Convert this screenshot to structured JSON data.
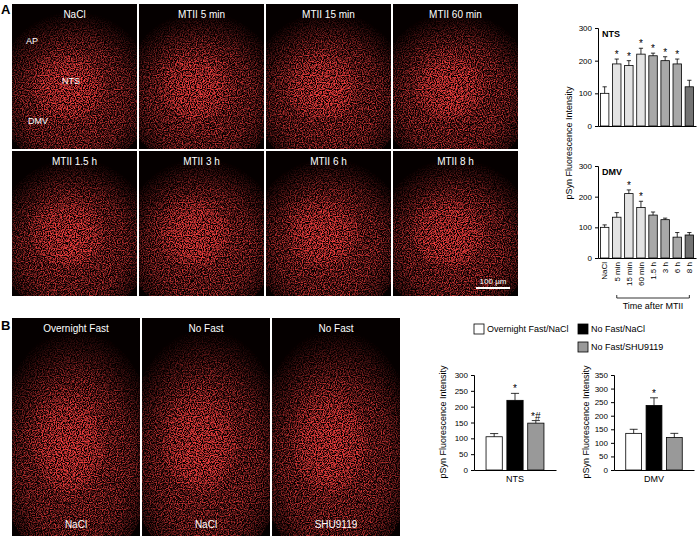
{
  "chart_data": [
    {
      "type": "bar",
      "title": "NTS",
      "categories": [
        null,
        null,
        null,
        null,
        null,
        null,
        null,
        null
      ],
      "values": [
        100,
        190,
        185,
        220,
        215,
        200,
        190,
        120
      ],
      "errors": [
        20,
        15,
        15,
        18,
        8,
        12,
        15,
        20
      ],
      "annotations": [
        null,
        "*",
        "*",
        "*",
        "*",
        "*",
        "*",
        null
      ],
      "colors": [
        "#ffffff",
        "#e3e3e3",
        "#e3e3e3",
        "#e3e3e3",
        "#a8a8a8",
        "#a8a8a8",
        "#a8a8a8",
        "#737373"
      ],
      "ylabel": "pSyn Fluorescence Intensity",
      "ylim": [
        0,
        300
      ],
      "yticks": [
        0,
        100,
        200,
        300
      ]
    },
    {
      "type": "bar",
      "title": "DMV",
      "categories": [
        "NaCl",
        "5 min",
        "15 min",
        "60 min",
        "1.5 h",
        "3 h",
        "6 h",
        "8 h"
      ],
      "values": [
        100,
        133,
        210,
        165,
        140,
        125,
        68,
        75
      ],
      "errors": [
        8,
        15,
        12,
        20,
        10,
        5,
        15,
        8
      ],
      "annotations": [
        null,
        null,
        "*",
        "*",
        null,
        null,
        null,
        null
      ],
      "colors": [
        "#ffffff",
        "#e3e3e3",
        "#e3e3e3",
        "#e3e3e3",
        "#a8a8a8",
        "#a8a8a8",
        "#a8a8a8",
        "#737373"
      ],
      "xlabel": "Time after MTII",
      "ylim": [
        0,
        300
      ],
      "yticks": [
        0,
        100,
        200,
        300
      ]
    },
    {
      "type": "bar",
      "categories": [
        "NTS"
      ],
      "series": [
        {
          "name": "Overnight Fast/NaCl",
          "color": "#ffffff",
          "values": [
            105
          ],
          "errors": [
            10
          ],
          "annotations": [
            null
          ]
        },
        {
          "name": "No Fast/NaCl",
          "color": "#000000",
          "values": [
            220
          ],
          "errors": [
            22
          ],
          "annotations": [
            "*"
          ]
        },
        {
          "name": "No Fast/SHU9119",
          "color": "#999999",
          "values": [
            148
          ],
          "errors": [
            8
          ],
          "annotations": [
            "*#"
          ]
        }
      ],
      "legend": "top",
      "ylabel": "pSyn Fluorescence Intensity",
      "ylim": [
        0,
        300
      ],
      "yticks": [
        0,
        50,
        100,
        150,
        200,
        250,
        300
      ]
    },
    {
      "type": "bar",
      "categories": [
        "DMV"
      ],
      "series": [
        {
          "color": "#ffffff",
          "values": [
            135
          ],
          "errors": [
            15
          ],
          "annotations": [
            null
          ]
        },
        {
          "color": "#000000",
          "values": [
            238
          ],
          "errors": [
            28
          ],
          "annotations": [
            "*"
          ]
        },
        {
          "color": "#999999",
          "values": [
            120
          ],
          "errors": [
            15
          ],
          "annotations": [
            null
          ]
        }
      ],
      "ylabel": "pSyn Fluorescence Intensity",
      "ylim": [
        0,
        350
      ],
      "yticks": [
        0,
        50,
        100,
        150,
        200,
        250,
        300,
        350
      ]
    }
  ],
  "micrographs": {
    "panel_labels": [
      "A",
      "B"
    ],
    "A": [
      "NaCl",
      "MTII 5 min",
      "MTII 15 min",
      "MTII 60 min",
      "MTII 1.5 h",
      "MTII 3 h",
      "MTII 6 h",
      "MTII 8 h"
    ],
    "B": [
      {
        "top": "Overnight Fast",
        "bottom": "NaCl"
      },
      {
        "top": "No Fast",
        "bottom": "NaCl"
      },
      {
        "top": "No Fast",
        "bottom": "SHU9119"
      }
    ],
    "regions": [
      "AP",
      "NTS",
      "DMV"
    ],
    "scale_bar": "100 µm"
  }
}
